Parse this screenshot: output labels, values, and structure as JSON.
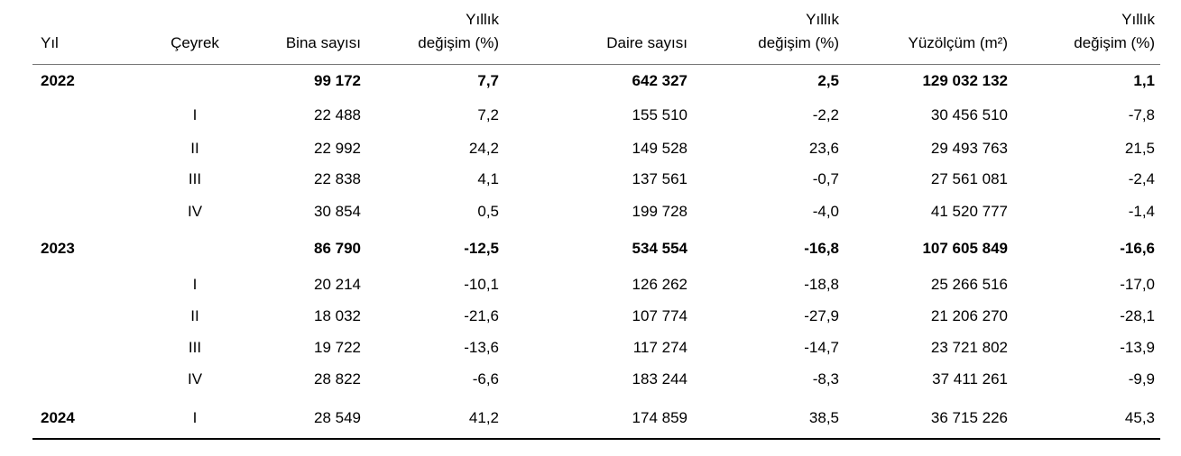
{
  "table": {
    "headers": [
      [
        "Yıl"
      ],
      [
        "Çeyrek"
      ],
      [
        "Bina sayısı"
      ],
      [
        "Yıllık",
        "değişim (%)"
      ],
      [
        "Daire sayısı"
      ],
      [
        "Yıllık",
        "değişim (%)"
      ],
      [
        "Yüzölçüm (m²)"
      ],
      [
        "Yıllık",
        "değişim (%)"
      ]
    ],
    "rows": [
      {
        "year": "2022",
        "total": true,
        "values": [
          "99 172",
          "7,7",
          "642 327",
          "2,5",
          "129 032 132",
          "1,1"
        ]
      },
      {
        "quarter": "I",
        "values": [
          "22 488",
          "7,2",
          "155 510",
          "-2,2",
          "30 456 510",
          "-7,8"
        ]
      },
      {
        "quarter": "II",
        "values": [
          "22 992",
          "24,2",
          "149 528",
          "23,6",
          "29 493 763",
          "21,5"
        ]
      },
      {
        "quarter": "III",
        "values": [
          "22 838",
          "4,1",
          "137 561",
          "-0,7",
          "27 561 081",
          "-2,4"
        ]
      },
      {
        "quarter": "IV",
        "values": [
          "30 854",
          "0,5",
          "199 728",
          "-4,0",
          "41 520 777",
          "-1,4"
        ]
      },
      {
        "year": "2023",
        "total": true,
        "values": [
          "86 790",
          "-12,5",
          "534 554",
          "-16,8",
          "107 605 849",
          "-16,6"
        ]
      },
      {
        "quarter": "I",
        "values": [
          "20 214",
          "-10,1",
          "126 262",
          "-18,8",
          "25 266 516",
          "-17,0"
        ]
      },
      {
        "quarter": "II",
        "values": [
          "18 032",
          "-21,6",
          "107 774",
          "-27,9",
          "21 206 270",
          "-28,1"
        ]
      },
      {
        "quarter": "III",
        "values": [
          "19 722",
          "-13,6",
          "117 274",
          "-14,7",
          "23 721 802",
          "-13,9"
        ]
      },
      {
        "quarter": "IV",
        "values": [
          "28 822",
          "-6,6",
          "183 244",
          "-8,3",
          "37 411 261",
          "-9,9"
        ]
      },
      {
        "year": "2024",
        "quarter": "I",
        "values": [
          "28 549",
          "41,2",
          "174 859",
          "38,5",
          "36 715 226",
          "45,3"
        ]
      }
    ]
  }
}
